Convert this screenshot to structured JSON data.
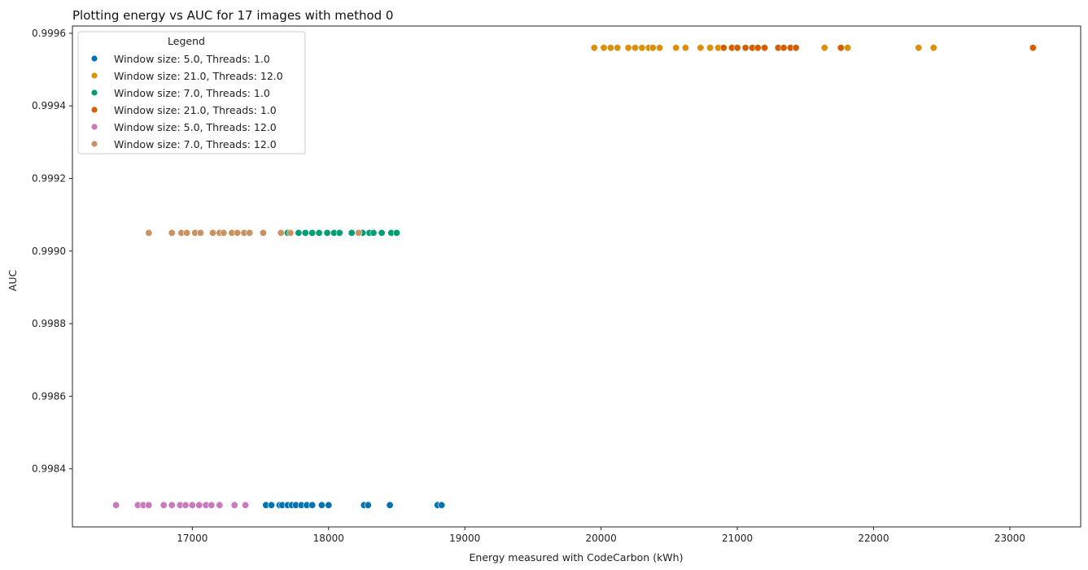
{
  "chart_data": {
    "type": "scatter",
    "title": "Plotting energy vs AUC for 17 images with method 0",
    "xlabel": "Energy measured with CodeCarbon (kWh)",
    "ylabel": "AUC",
    "xlim": [
      16120,
      23520
    ],
    "ylim": [
      0.99824,
      0.99962
    ],
    "xticks": [
      17000,
      18000,
      19000,
      20000,
      21000,
      22000,
      23000
    ],
    "xtick_labels": [
      "17000",
      "18000",
      "19000",
      "20000",
      "21000",
      "22000",
      "23000"
    ],
    "yticks": [
      0.9984,
      0.9986,
      0.9988,
      0.999,
      0.9992,
      0.9994,
      0.9996
    ],
    "ytick_labels": [
      "0.9984",
      "0.9986",
      "0.9988",
      "0.9990",
      "0.9992",
      "0.9994",
      "0.9996"
    ],
    "grid": false,
    "legend": {
      "title": "Legend",
      "placement": "top-left"
    },
    "series": [
      {
        "name": "Window size: 5.0, Threads: 1.0",
        "color": "#0173b2",
        "y": 0.9983,
        "x": [
          17540,
          17580,
          17640,
          17660,
          17700,
          17730,
          17760,
          17800,
          17840,
          17880,
          17950,
          18000,
          18260,
          18290,
          18450,
          18800,
          18830
        ]
      },
      {
        "name": "Window size: 21.0, Threads: 12.0",
        "color": "#de8f05",
        "y": 0.99956,
        "x": [
          19950,
          20020,
          20070,
          20120,
          20200,
          20250,
          20300,
          20350,
          20380,
          20430,
          20550,
          20620,
          20730,
          20800,
          20860,
          21640,
          21810,
          22330,
          22440
        ]
      },
      {
        "name": "Window size: 7.0, Threads: 1.0",
        "color": "#029e73",
        "y": 0.99905,
        "x": [
          17700,
          17780,
          17830,
          17880,
          17930,
          17990,
          18040,
          18080,
          18170,
          18250,
          18300,
          18330,
          18390,
          18460,
          18500
        ]
      },
      {
        "name": "Window size: 21.0, Threads: 1.0",
        "color": "#d55e00",
        "y": 0.99956,
        "x": [
          20900,
          20960,
          21000,
          21060,
          21110,
          21150,
          21200,
          21300,
          21340,
          21390,
          21430,
          21760,
          23170
        ]
      },
      {
        "name": "Window size: 5.0, Threads: 12.0",
        "color": "#cc78bc",
        "y": 0.9983,
        "x": [
          16440,
          16600,
          16640,
          16680,
          16790,
          16850,
          16910,
          16950,
          17000,
          17050,
          17100,
          17140,
          17200,
          17310,
          17390
        ]
      },
      {
        "name": "Window size: 7.0, Threads: 12.0",
        "color": "#ca9161",
        "y": 0.99905,
        "x": [
          16680,
          16850,
          16920,
          16960,
          17020,
          17060,
          17150,
          17200,
          17230,
          17290,
          17330,
          17380,
          17420,
          17520,
          17650,
          17720,
          18220
        ]
      }
    ]
  }
}
